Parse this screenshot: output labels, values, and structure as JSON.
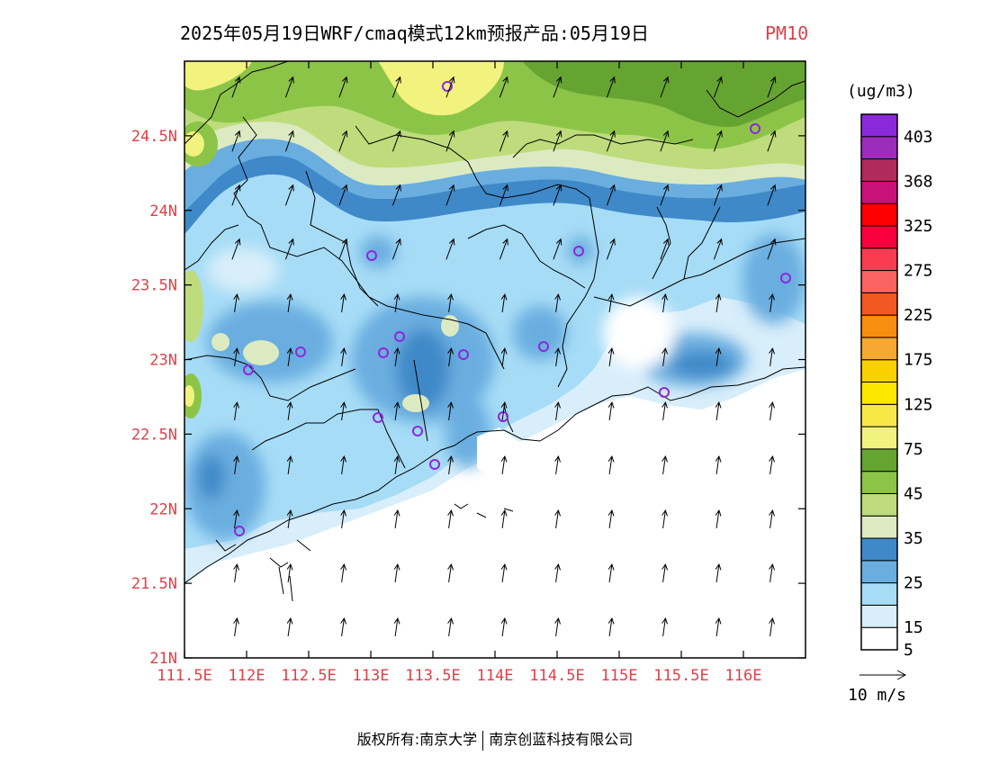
{
  "title": {
    "main": "2025年05月19日WRF/cmaq模式12km预报产品:05月19日",
    "variable": "PM10"
  },
  "map": {
    "lon_range": [
      111.5,
      116.5
    ],
    "lat_range": [
      21.0,
      25.0
    ],
    "x_ticks": [
      "111.5E",
      "112E",
      "112.5E",
      "113E",
      "113.5E",
      "114E",
      "114.5E",
      "115E",
      "115.5E",
      "116E"
    ],
    "x_tick_values": [
      111.5,
      112.0,
      112.5,
      113.0,
      113.5,
      114.0,
      114.5,
      115.0,
      115.5,
      116.0
    ],
    "y_ticks": [
      "24.5N",
      "24N",
      "23.5N",
      "23N",
      "22.5N",
      "22N",
      "21.5N",
      "21N"
    ],
    "y_tick_values": [
      24.5,
      24.0,
      23.5,
      23.0,
      22.5,
      22.0,
      21.5,
      21.0
    ]
  },
  "legend": {
    "unit": "(ug/m3)",
    "labels": [
      "403",
      "368",
      "325",
      "275",
      "225",
      "175",
      "125",
      "75",
      "45",
      "35",
      "25",
      "15",
      "5"
    ],
    "colors": [
      "#ffffff",
      "#d8eefa",
      "#a6dcf6",
      "#6aaee0",
      "#3f89c8",
      "#dceac2",
      "#bedc7c",
      "#8cc448",
      "#66a432",
      "#f2f27e",
      "#f8e846",
      "#fde700",
      "#fbd000",
      "#f6a832",
      "#f98d10",
      "#f25822",
      "#fb6262",
      "#f93c50",
      "#f8003c",
      "#fe0000",
      "#c8127a",
      "#b02a5a",
      "#9c2cbc",
      "#8c28dc"
    ]
  },
  "wind_scale": {
    "label": "10 m/s"
  },
  "copyright": {
    "left": "版权所有:南京大学",
    "right": "南京创蓝科技有限公司"
  }
}
